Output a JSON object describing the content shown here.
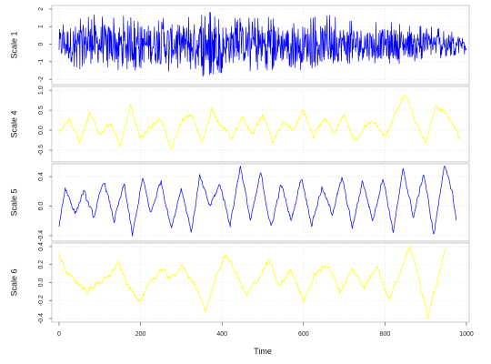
{
  "chart_data": {
    "type": "line",
    "xlabel": "Time",
    "xlim": [
      0,
      1000
    ],
    "xticks": [
      0,
      200,
      400,
      600,
      800,
      1000
    ],
    "x_tick_labels": [
      "0",
      "200",
      "400",
      "600",
      "800",
      "1000"
    ],
    "grid": true,
    "grid_style": "dotted light gray",
    "panels": [
      {
        "ylabel": "Scale 1",
        "color": "#0000ff",
        "ylim": [
          -2.2,
          2.1
        ],
        "yticks": [
          -2,
          -1,
          0,
          1,
          2
        ],
        "y_tick_labels": [
          "-2",
          "-1",
          "0",
          "1",
          "2"
        ],
        "x_start": 0,
        "x_end": 1000,
        "x": [
          0,
          40,
          80,
          120,
          160,
          200,
          240,
          280,
          320,
          360,
          400,
          440,
          480,
          520,
          560,
          600,
          640,
          660,
          700,
          740,
          780,
          820,
          860,
          900,
          940,
          980,
          1000
        ],
        "upper": [
          1.1,
          1.7,
          1.7,
          1.8,
          1.6,
          1.5,
          1.5,
          1.6,
          1.7,
          1.9,
          1.7,
          1.5,
          1.6,
          1.7,
          1.4,
          1.5,
          1.6,
          1.8,
          1.5,
          1.4,
          1.3,
          1.3,
          1.2,
          1.1,
          0.9,
          0.7,
          0.6
        ],
        "lower": [
          -1.3,
          -1.4,
          -1.5,
          -1.4,
          -1.5,
          -1.6,
          -1.8,
          -1.6,
          -1.5,
          -2.0,
          -1.7,
          -1.5,
          -1.6,
          -1.5,
          -1.4,
          -1.5,
          -1.4,
          -1.3,
          -1.3,
          -1.2,
          -1.1,
          -1.2,
          -1.0,
          -0.9,
          -0.8,
          -0.6,
          -0.6
        ]
      },
      {
        "ylabel": "Scale 4",
        "color": "#ffff00",
        "ylim": [
          -0.75,
          1.05
        ],
        "yticks": [
          -0.5,
          0.0,
          0.5,
          1.0
        ],
        "y_tick_labels": [
          "-0.5",
          "0.0",
          "0.5",
          "1.0"
        ],
        "x": [
          0,
          25,
          50,
          75,
          100,
          125,
          150,
          175,
          200,
          225,
          250,
          275,
          300,
          325,
          350,
          375,
          400,
          425,
          450,
          475,
          500,
          525,
          550,
          575,
          600,
          625,
          650,
          675,
          700,
          725,
          750,
          775,
          800,
          825,
          850,
          875,
          900,
          925,
          950,
          975,
          985
        ],
        "y": [
          0.0,
          0.3,
          -0.3,
          0.4,
          -0.1,
          0.2,
          -0.4,
          0.6,
          -0.2,
          0.1,
          0.3,
          -0.5,
          0.2,
          0.4,
          -0.3,
          0.5,
          0.1,
          -0.2,
          0.3,
          -0.1,
          0.4,
          -0.3,
          0.2,
          0.0,
          0.5,
          -0.2,
          0.3,
          -0.1,
          0.4,
          -0.3,
          0.1,
          0.2,
          -0.2,
          0.4,
          0.9,
          0.2,
          -0.3,
          0.6,
          0.4,
          0.0,
          -0.3
        ]
      },
      {
        "ylabel": "Scale 5",
        "color": "#0000ff",
        "ylim": [
          -0.45,
          0.55
        ],
        "yticks": [
          -0.4,
          0.0,
          0.4
        ],
        "y_tick_labels": [
          "-0.4",
          "0.0",
          "0.4"
        ],
        "x": [
          0,
          15,
          40,
          60,
          85,
          110,
          135,
          160,
          180,
          205,
          225,
          250,
          275,
          300,
          325,
          345,
          370,
          395,
          420,
          445,
          470,
          495,
          520,
          545,
          570,
          595,
          620,
          645,
          670,
          695,
          720,
          745,
          770,
          795,
          820,
          845,
          870,
          895,
          920,
          945,
          965,
          975
        ],
        "y": [
          -0.25,
          0.25,
          -0.1,
          0.2,
          -0.15,
          0.35,
          -0.2,
          0.3,
          -0.4,
          0.38,
          -0.1,
          0.35,
          -0.3,
          0.25,
          -0.35,
          0.4,
          0.0,
          0.3,
          -0.25,
          0.55,
          -0.2,
          0.45,
          -0.3,
          0.3,
          -0.2,
          0.4,
          -0.25,
          0.25,
          -0.1,
          0.38,
          -0.3,
          0.35,
          -0.2,
          0.4,
          -0.35,
          0.5,
          -0.15,
          0.45,
          -0.4,
          0.55,
          0.2,
          -0.2
        ]
      },
      {
        "ylabel": "Scale 6",
        "color": "#ffff00",
        "ylim": [
          -0.42,
          0.42
        ],
        "yticks": [
          -0.4,
          -0.2,
          0.0,
          0.2,
          0.4
        ],
        "y_tick_labels": [
          "-0.4",
          "-0.2",
          "0.0",
          "0.2",
          "0.4"
        ],
        "x": [
          0,
          20,
          45,
          70,
          95,
          120,
          145,
          170,
          200,
          225,
          250,
          275,
          300,
          330,
          360,
          385,
          410,
          435,
          460,
          490,
          515,
          540,
          570,
          600,
          630,
          660,
          690,
          720,
          750,
          780,
          810,
          835,
          860,
          885,
          905,
          930,
          950
        ],
        "y": [
          0.32,
          0.1,
          0.0,
          -0.1,
          0.0,
          0.05,
          0.22,
          -0.05,
          -0.2,
          0.0,
          0.15,
          0.05,
          0.18,
          0.0,
          -0.3,
          0.05,
          0.32,
          0.1,
          -0.15,
          0.05,
          0.25,
          -0.05,
          0.15,
          -0.2,
          0.1,
          0.2,
          -0.1,
          0.15,
          -0.05,
          0.2,
          -0.2,
          0.1,
          0.42,
          0.0,
          -0.38,
          0.05,
          0.38
        ]
      }
    ]
  }
}
